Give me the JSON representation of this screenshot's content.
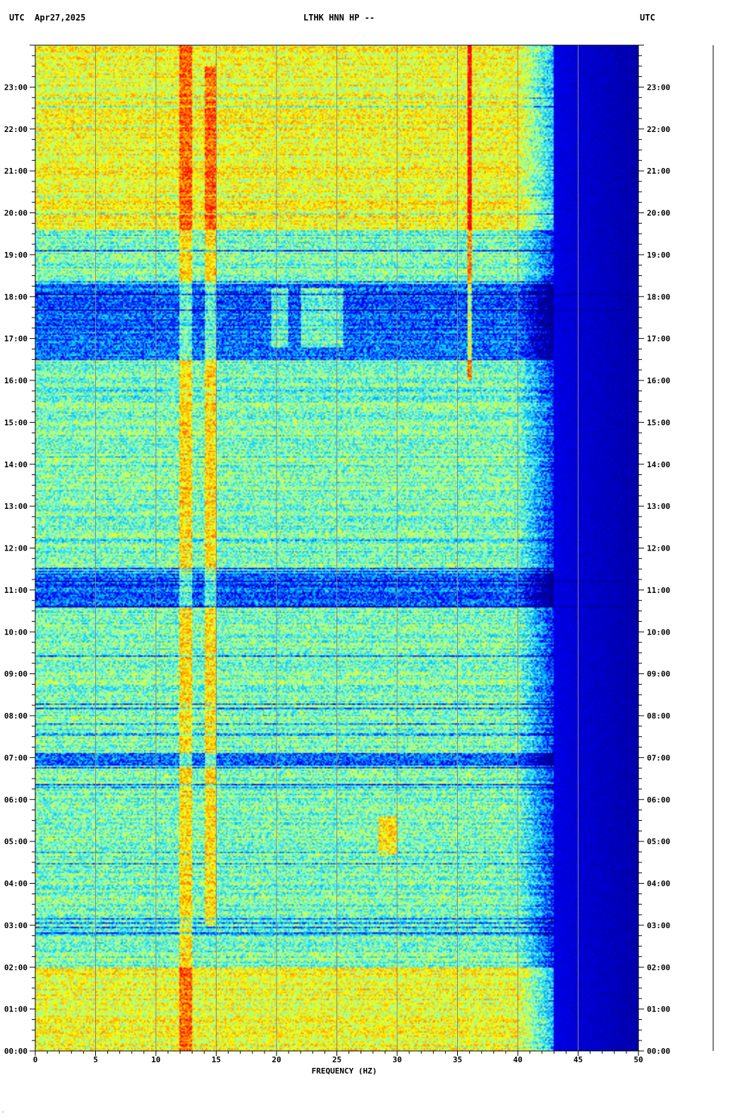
{
  "header": {
    "left_tz": "UTC",
    "date": "Apr27,2025",
    "station": "LTHK HNN HP --",
    "right_tz": "UTC"
  },
  "chart_data": {
    "type": "heatmap",
    "title": "LTHK HNN HP --",
    "xlabel": "FREQUENCY (HZ)",
    "ylabel": "UTC",
    "xlim": [
      0,
      50
    ],
    "ylim_hours": [
      0,
      24
    ],
    "x_ticks": [
      "0",
      "5",
      "10",
      "15",
      "20",
      "25",
      "30",
      "35",
      "40",
      "45",
      "50"
    ],
    "y_ticks": [
      "00:00",
      "01:00",
      "02:00",
      "03:00",
      "04:00",
      "05:00",
      "06:00",
      "07:00",
      "08:00",
      "09:00",
      "10:00",
      "11:00",
      "12:00",
      "13:00",
      "14:00",
      "15:00",
      "16:00",
      "17:00",
      "18:00",
      "19:00",
      "20:00",
      "21:00",
      "22:00",
      "23:00"
    ],
    "colormap": [
      "#00008b",
      "#0000ff",
      "#00bfff",
      "#7fffd4",
      "#ffff00",
      "#ff8c00",
      "#ff0000"
    ],
    "rolloff_hz": 43,
    "features": [
      {
        "kind": "band",
        "freq_hz": [
          12,
          13
        ],
        "hours": [
          0,
          24
        ]
      },
      {
        "kind": "band",
        "freq_hz": [
          14,
          15
        ],
        "hours": [
          3,
          23.5
        ]
      },
      {
        "kind": "line",
        "freq_hz": 36,
        "hours": [
          16,
          24
        ]
      },
      {
        "kind": "patch",
        "freq_hz": [
          19.5,
          21
        ],
        "hours": [
          16.8,
          18.2
        ]
      },
      {
        "kind": "patch",
        "freq_hz": [
          22,
          25.5
        ],
        "hours": [
          16.8,
          18.2
        ]
      },
      {
        "kind": "patch",
        "freq_hz": [
          28.5,
          30
        ],
        "hours": [
          4.7,
          5.6
        ]
      },
      {
        "kind": "quiet",
        "hours": [
          16.5,
          18.3
        ]
      },
      {
        "kind": "quiet",
        "hours": [
          10.6,
          11.4
        ]
      },
      {
        "kind": "quiet",
        "hours": [
          6.8,
          7.1
        ]
      },
      {
        "kind": "loud",
        "hours": [
          0,
          2
        ]
      },
      {
        "kind": "loud",
        "hours": [
          19.6,
          24
        ]
      }
    ]
  },
  "footer": {
    "mark": "·"
  }
}
